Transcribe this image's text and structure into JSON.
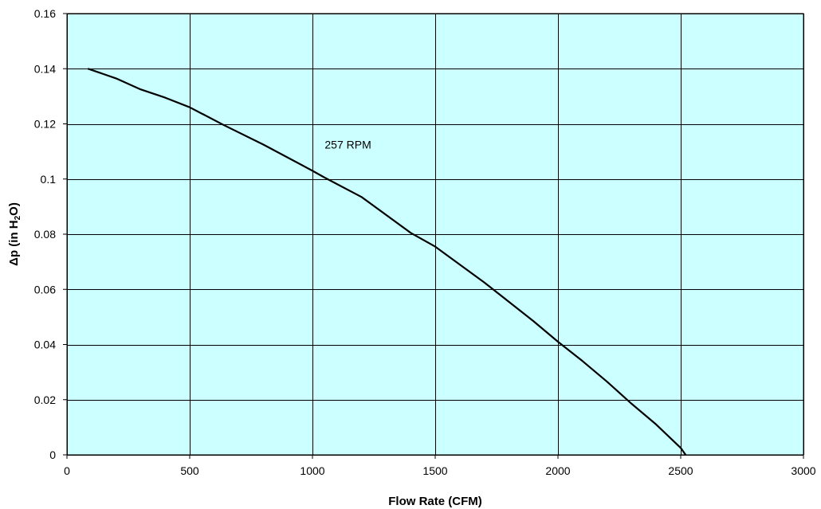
{
  "chart_data": {
    "type": "line",
    "xlabel": "Flow Rate (CFM)",
    "ylabel": {
      "prefix": "Δp (in H",
      "subscript": "2",
      "suffix": "O)"
    },
    "xlim": [
      0,
      3000
    ],
    "ylim": [
      0,
      0.16
    ],
    "x_ticks": [
      0,
      500,
      1000,
      1500,
      2000,
      2500,
      3000
    ],
    "x_tick_labels": [
      "0",
      "500",
      "1000",
      "1500",
      "2000",
      "2500",
      "3000"
    ],
    "y_ticks": [
      0,
      0.02,
      0.04,
      0.06,
      0.08,
      0.1,
      0.12,
      0.14,
      0.16
    ],
    "y_tick_labels": [
      "0",
      "0.02",
      "0.04",
      "0.06",
      "0.08",
      "0.1",
      "0.12",
      "0.14",
      "0.16"
    ],
    "grid": true,
    "colors": {
      "plot_background": "#ccffff",
      "gridline": "#000000",
      "series_line": "#000000"
    },
    "series": [
      {
        "x": [
          85,
          200,
          300,
          400,
          500,
          640,
          800,
          1000,
          1050,
          1200,
          1400,
          1500,
          1700,
          1900,
          2000,
          2100,
          2200,
          2300,
          2400,
          2500,
          2520
        ],
        "y": [
          0.14,
          0.1365,
          0.1325,
          0.1295,
          0.126,
          0.1195,
          0.1125,
          0.103,
          0.1005,
          0.0935,
          0.0805,
          0.0755,
          0.0625,
          0.0485,
          0.041,
          0.034,
          0.0265,
          0.0185,
          0.011,
          0.0025,
          0
        ]
      }
    ],
    "annotations": [
      {
        "text": "257 RPM",
        "x": 1050,
        "y": 0.111
      }
    ]
  }
}
